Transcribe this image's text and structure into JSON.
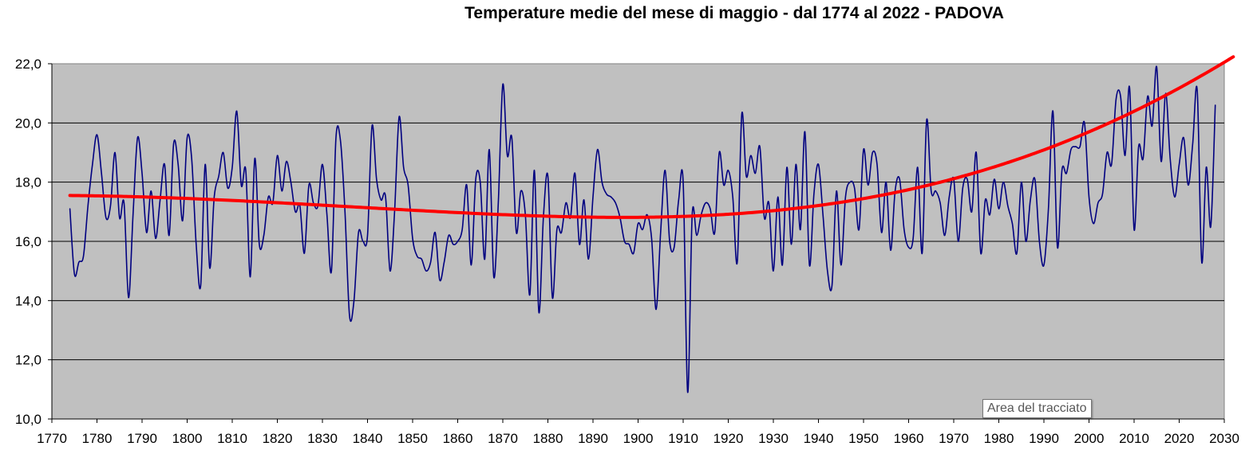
{
  "chart_data": {
    "type": "line",
    "title": "Temperature medie del mese di maggio - dal 1774 al 2022 - PADOVA",
    "xlabel": "",
    "ylabel": "",
    "xlim": [
      1770,
      2030
    ],
    "ylim": [
      10,
      22
    ],
    "x_ticks": [
      1770,
      1780,
      1790,
      1800,
      1810,
      1820,
      1830,
      1840,
      1850,
      1860,
      1870,
      1880,
      1890,
      1900,
      1910,
      1920,
      1930,
      1940,
      1950,
      1960,
      1970,
      1980,
      1990,
      2000,
      2010,
      2020,
      2030
    ],
    "y_ticks": [
      10,
      12,
      14,
      16,
      18,
      20,
      22
    ],
    "y_tick_labels": [
      "10,0",
      "12,0",
      "14,0",
      "16,0",
      "18,0",
      "20,0",
      "22,0"
    ],
    "grid": true,
    "plot_area_color": "#C0C0C0",
    "series": [
      {
        "color": "#000080",
        "x_start": 1774,
        "x_step": 1,
        "values": [
          17.1,
          14.9,
          15.3,
          15.5,
          17.2,
          18.6,
          19.6,
          18.3,
          16.8,
          17.2,
          19.0,
          16.8,
          17.3,
          14.1,
          16.9,
          19.5,
          18.3,
          16.3,
          17.7,
          16.1,
          17.4,
          18.6,
          16.2,
          19.3,
          18.6,
          16.7,
          19.5,
          18.8,
          15.9,
          14.5,
          18.6,
          15.1,
          17.5,
          18.2,
          19.0,
          17.8,
          18.5,
          20.4,
          17.9,
          18.4,
          14.8,
          18.8,
          15.9,
          16.2,
          17.5,
          17.3,
          18.9,
          17.7,
          18.7,
          18.0,
          17.0,
          17.2,
          15.6,
          17.9,
          17.3,
          17.2,
          18.6,
          16.9,
          15.0,
          19.5,
          19.4,
          17.0,
          13.5,
          14.0,
          16.3,
          16.0,
          16.2,
          19.9,
          18.1,
          17.4,
          17.5,
          15.0,
          17.0,
          20.2,
          18.5,
          17.9,
          16.1,
          15.5,
          15.4,
          15.0,
          15.3,
          16.3,
          14.7,
          15.3,
          16.2,
          15.9,
          16.0,
          16.4,
          17.9,
          15.2,
          18.1,
          18.0,
          15.4,
          19.1,
          14.8,
          17.3,
          21.3,
          18.9,
          19.5,
          16.3,
          17.7,
          16.9,
          14.2,
          18.4,
          13.6,
          16.8,
          18.2,
          14.1,
          16.4,
          16.3,
          17.3,
          16.8,
          18.3,
          15.9,
          17.4,
          15.4,
          17.5,
          19.1,
          18.0,
          17.6,
          17.5,
          17.3,
          16.8,
          16.0,
          15.9,
          15.6,
          16.6,
          16.4,
          16.9,
          16.1,
          13.7,
          16.3,
          18.4,
          16.0,
          15.8,
          17.4,
          18.0,
          10.9,
          16.9,
          16.2,
          16.9,
          17.3,
          17.1,
          16.3,
          19.0,
          17.9,
          18.4,
          17.5,
          15.3,
          20.3,
          18.2,
          18.9,
          18.3,
          19.2,
          16.8,
          17.3,
          15.0,
          17.5,
          15.2,
          18.5,
          15.9,
          18.6,
          16.4,
          19.7,
          15.2,
          17.6,
          18.6,
          16.9,
          15.0,
          14.5,
          17.7,
          15.2,
          17.5,
          18.0,
          17.8,
          16.4,
          19.1,
          17.9,
          19.0,
          18.6,
          16.3,
          18.0,
          15.7,
          17.7,
          18.1,
          16.4,
          15.8,
          16.1,
          18.5,
          15.6,
          20.1,
          17.7,
          17.7,
          17.3,
          16.2,
          17.5,
          18.1,
          16.0,
          17.8,
          18.1,
          17.0,
          19.0,
          15.6,
          17.4,
          16.9,
          18.1,
          17.1,
          18.0,
          17.2,
          16.6,
          15.6,
          18.0,
          16.0,
          17.4,
          18.1,
          16.0,
          15.2,
          17.1,
          20.4,
          15.8,
          18.4,
          18.3,
          19.1,
          19.2,
          19.2,
          20.0,
          17.5,
          16.6,
          17.3,
          17.6,
          19.0,
          18.6,
          20.8,
          20.9,
          18.9,
          21.2,
          16.4,
          19.2,
          18.8,
          20.9,
          19.9,
          21.9,
          18.7,
          21.0,
          18.8,
          17.5,
          18.6,
          19.5,
          17.9,
          19.3,
          21.1,
          15.3,
          18.5,
          16.5,
          20.6
        ]
      },
      {
        "color": "#FF0000",
        "trend": "polynomial",
        "x_start": 1774,
        "x_step": 1,
        "values": [
          17.55,
          17.548,
          17.546,
          17.544,
          17.542,
          17.54,
          17.537,
          17.534,
          17.531,
          17.528,
          17.525,
          17.522,
          17.518,
          17.514,
          17.51,
          17.506,
          17.502,
          17.497,
          17.492,
          17.487,
          17.482,
          17.477,
          17.472,
          17.466,
          17.461,
          17.455,
          17.449,
          17.443,
          17.437,
          17.43,
          17.424,
          17.417,
          17.41,
          17.404,
          17.397,
          17.389,
          17.382,
          17.375,
          17.368,
          17.36,
          17.352,
          17.345,
          17.337,
          17.329,
          17.321,
          17.313,
          17.305,
          17.297,
          17.289,
          17.281,
          17.272,
          17.264,
          17.256,
          17.247,
          17.239,
          17.23,
          17.222,
          17.213,
          17.205,
          17.196,
          17.188,
          17.179,
          17.171,
          17.162,
          17.153,
          17.145,
          17.136,
          17.128,
          17.119,
          17.11,
          17.102,
          17.094,
          17.085,
          17.077,
          17.068,
          17.06,
          17.051,
          17.043,
          17.035,
          17.027,
          17.019,
          17.011,
          17.003,
          16.995,
          16.987,
          16.98,
          16.972,
          16.965,
          16.957,
          16.95,
          16.943,
          16.936,
          16.929,
          16.922,
          16.916,
          16.909,
          16.903,
          16.897,
          16.891,
          16.885,
          16.879,
          16.874,
          16.868,
          16.863,
          16.858,
          16.854,
          16.849,
          16.845,
          16.841,
          16.837,
          16.833,
          16.83,
          16.827,
          16.824,
          16.821,
          16.819,
          16.817,
          16.815,
          16.813,
          16.812,
          16.811,
          16.81,
          16.81,
          16.81,
          16.81,
          16.811,
          16.812,
          16.813,
          16.815,
          16.817,
          16.82,
          16.823,
          16.826,
          16.83,
          16.834,
          16.838,
          16.843,
          16.848,
          16.854,
          16.86,
          16.867,
          16.874,
          16.881,
          16.889,
          16.897,
          16.906,
          16.916,
          16.925,
          16.936,
          16.946,
          16.958,
          16.97,
          16.982,
          16.995,
          17.008,
          17.022,
          17.036,
          17.051,
          17.067,
          17.083,
          17.099,
          17.116,
          17.134,
          17.152,
          17.171,
          17.191,
          17.211,
          17.231,
          17.253,
          17.274,
          17.297,
          17.32,
          17.344,
          17.368,
          17.393,
          17.419,
          17.445,
          17.472,
          17.5,
          17.528,
          17.557,
          17.587,
          17.617,
          17.648,
          17.68,
          17.712,
          17.745,
          17.779,
          17.814,
          17.849,
          17.885,
          17.922,
          17.959,
          17.997,
          18.036,
          18.076,
          18.117,
          18.158,
          18.2,
          18.242,
          18.286,
          18.33,
          18.375,
          18.421,
          18.468,
          18.515,
          18.563,
          18.612,
          18.662,
          18.712,
          18.764,
          18.816,
          18.869,
          18.923,
          18.977,
          19.033,
          19.089,
          19.146,
          19.204,
          19.263,
          19.323,
          19.383,
          19.445,
          19.507,
          19.57,
          19.634,
          19.699,
          19.764,
          19.831,
          19.898,
          19.966,
          20.035,
          20.105,
          20.176,
          20.248,
          20.32,
          20.394,
          20.468,
          20.543,
          20.62,
          20.696,
          20.774,
          20.853,
          20.933,
          21.013,
          21.095,
          21.177,
          21.26,
          21.344,
          21.429,
          21.515,
          21.602,
          21.689,
          21.778,
          21.868,
          21.958,
          22.049,
          22.141,
          22.234
        ]
      }
    ]
  },
  "tooltip": {
    "text": "Area del tracciato"
  }
}
